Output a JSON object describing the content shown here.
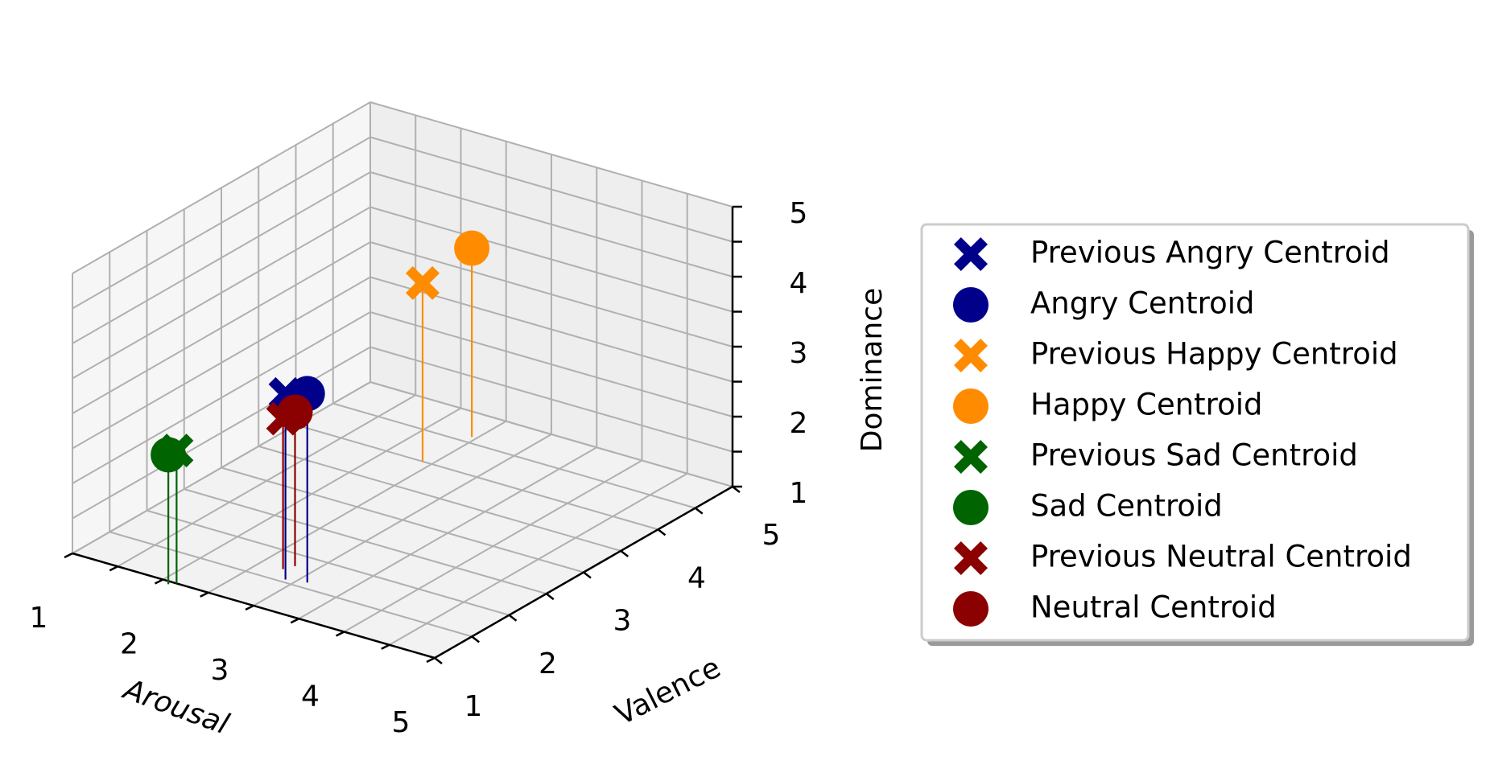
{
  "chart_data": {
    "type": "scatter",
    "projection": "3d",
    "grid": true,
    "legend_position": "right",
    "xlabel": "Arousal",
    "ylabel": "Valence",
    "zlabel": "Dominance",
    "xlim": [
      1,
      5
    ],
    "ylim": [
      1,
      5
    ],
    "zlim": [
      1,
      5
    ],
    "x_ticks": [
      "1",
      "2",
      "3",
      "4",
      "5"
    ],
    "y_ticks": [
      "1",
      "2",
      "3",
      "4",
      "5"
    ],
    "z_ticks": [
      "1",
      "2",
      "3",
      "4",
      "5"
    ],
    "stems": true,
    "series": [
      {
        "name": "Previous Angry Centroid",
        "marker": "x",
        "color": "#00008b",
        "x": 2.9,
        "y": 1.55,
        "z": 3.65
      },
      {
        "name": "Angry Centroid",
        "marker": "circle",
        "color": "#00008b",
        "x": 3.1,
        "y": 1.6,
        "z": 3.7
      },
      {
        "name": "Previous Happy Centroid",
        "marker": "x",
        "color": "#ff8c00",
        "x": 2.4,
        "y": 4.0,
        "z": 3.55
      },
      {
        "name": "Happy Centroid",
        "marker": "circle",
        "color": "#ff8c00",
        "x": 2.45,
        "y": 4.6,
        "z": 3.7
      },
      {
        "name": "Previous Sad Centroid",
        "marker": "x",
        "color": "#006400",
        "x": 2.15,
        "y": 1.0,
        "z": 2.9
      },
      {
        "name": "Sad Centroid",
        "marker": "circle",
        "color": "#006400",
        "x": 2.1,
        "y": 0.95,
        "z": 2.85
      },
      {
        "name": "Previous Neutral Centroid",
        "marker": "x",
        "color": "#8b0000",
        "x": 2.75,
        "y": 1.7,
        "z": 3.15
      },
      {
        "name": "Neutral Centroid",
        "marker": "circle",
        "color": "#8b0000",
        "x": 2.8,
        "y": 1.8,
        "z": 3.2
      }
    ]
  }
}
